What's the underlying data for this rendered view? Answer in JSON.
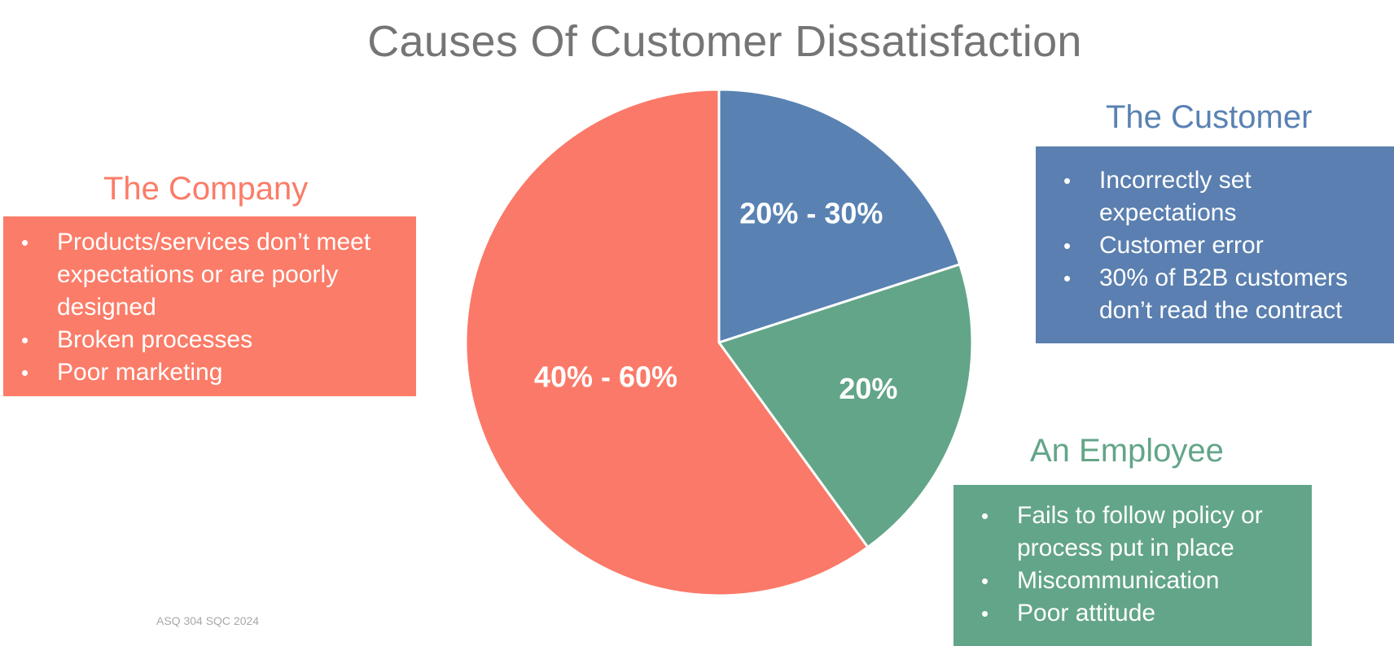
{
  "title": "Causes Of Customer Dissatisfaction",
  "company": {
    "heading": "The Company",
    "items": [
      "Products/services don’t meet expectations or are poorly designed",
      "Broken processes",
      "Poor marketing"
    ]
  },
  "customer": {
    "heading": "The Customer",
    "items": [
      "Incorrectly set expectations",
      "Customer error",
      "30% of B2B customers don’t read the contract"
    ]
  },
  "employee": {
    "heading": "An Employee",
    "items": [
      "Fails to follow policy or process put in place",
      "Miscommunication",
      "Poor attitude"
    ]
  },
  "footer": "ASQ 304 SQC 2024",
  "chart_data": {
    "type": "pie",
    "title": "Causes Of Customer Dissatisfaction",
    "start_angle_deg": 0,
    "direction": "clockwise",
    "slices": [
      {
        "name": "The Customer",
        "label": "20% - 30%",
        "value": 20,
        "color": "#5982b3"
      },
      {
        "name": "An Employee",
        "label": "20%",
        "value": 20,
        "color": "#63a588"
      },
      {
        "name": "The Company",
        "label": "40% - 60%",
        "value": 60,
        "color": "#fb7968"
      }
    ]
  }
}
